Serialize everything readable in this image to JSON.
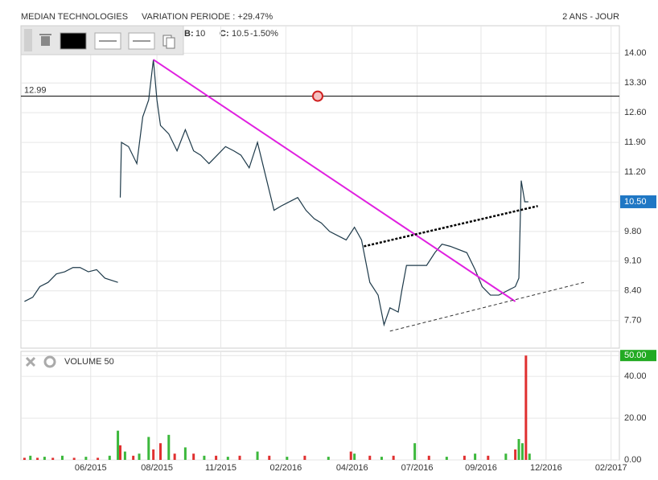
{
  "chart_data": [
    {
      "type": "line",
      "title": "MEDIAN TECHNOLOGIES",
      "subtitle": "VARIATION PERIODE : +29.47%",
      "period": "2 ANS - JOUR",
      "info": {
        "b_key": "B:",
        "b_value": 10,
        "c_key": "C:",
        "c_value": 10.5,
        "change": "-1.50%",
        "change_color": "#cc2222"
      },
      "xlim": [
        0,
        506
      ],
      "ylim": [
        7.05,
        14.65
      ],
      "yticks": [
        {
          "value": 7.7,
          "label": "7.70"
        },
        {
          "value": 8.4,
          "label": "8.40"
        },
        {
          "value": 9.1,
          "label": "9.10"
        },
        {
          "value": 9.8,
          "label": "9.80"
        },
        {
          "value": 10.5,
          "label": "10.50"
        },
        {
          "value": 11.2,
          "label": "11.20"
        },
        {
          "value": 11.9,
          "label": "11.90"
        },
        {
          "value": 12.6,
          "label": "12.60"
        },
        {
          "value": 13.3,
          "label": "13.30"
        },
        {
          "value": 14.0,
          "label": "14.00"
        }
      ],
      "grid": true,
      "series": [
        {
          "color": "#1e3a4a",
          "x": [
            3,
            10,
            16,
            23,
            30,
            37,
            44,
            50,
            57,
            64,
            71,
            82,
            83,
            84,
            85,
            91,
            98,
            103,
            108,
            112,
            115,
            118,
            125,
            132,
            139,
            146,
            152,
            159,
            166,
            173,
            180,
            186,
            193,
            200,
            207,
            214,
            220,
            227,
            234,
            241,
            248,
            254,
            261,
            268,
            275,
            282,
            288,
            295,
            302,
            307,
            312,
            319,
            322,
            326,
            333,
            343,
            350,
            356,
            363,
            377,
            384,
            390,
            397,
            404,
            411,
            418,
            421,
            423,
            426,
            429
          ],
          "values": [
            8.15,
            8.25,
            8.5,
            8.6,
            8.8,
            8.85,
            8.95,
            8.95,
            8.85,
            8.9,
            8.7,
            8.6,
            null,
            10.6,
            11.9,
            11.8,
            11.4,
            12.5,
            12.9,
            13.85,
            12.9,
            12.3,
            12.1,
            11.7,
            12.2,
            11.7,
            11.6,
            11.4,
            11.6,
            11.8,
            11.7,
            11.6,
            11.3,
            11.9,
            11.1,
            10.3,
            10.4,
            10.5,
            10.6,
            10.3,
            10.1,
            10.0,
            9.8,
            9.7,
            9.6,
            9.9,
            9.6,
            8.6,
            8.3,
            7.6,
            8.0,
            7.9,
            8.4,
            9.0,
            9.0,
            9.0,
            9.3,
            9.5,
            9.45,
            9.3,
            8.9,
            8.5,
            8.3,
            8.3,
            8.4,
            8.5,
            8.7,
            11.0,
            10.5,
            10.5
          ]
        }
      ],
      "last_price": {
        "value": 10.5,
        "label": "10.50",
        "color": "#1f77c4"
      },
      "hline": {
        "value": 12.99,
        "color": "#000000"
      },
      "trendlines": [
        {
          "x": [
            112,
            418
          ],
          "values": [
            13.85,
            8.15
          ],
          "color": "#e020e0",
          "style": "solid"
        },
        {
          "x": [
            290,
            437
          ],
          "values": [
            9.45,
            10.4
          ],
          "color": "#000000",
          "style": "dotted"
        },
        {
          "x": [
            312,
            476
          ],
          "values": [
            7.45,
            8.6
          ],
          "color": "#333333",
          "style": "dashed"
        }
      ]
    },
    {
      "type": "bar",
      "label": "VOLUME 50",
      "xlim": [
        0,
        506
      ],
      "xticks": [
        {
          "value": 59,
          "label": "06/2015"
        },
        {
          "value": 115,
          "label": "08/2015"
        },
        {
          "value": 169,
          "label": "11/2015"
        },
        {
          "value": 224,
          "label": "02/2016"
        },
        {
          "value": 280,
          "label": "04/2016"
        },
        {
          "value": 335,
          "label": "07/2016"
        },
        {
          "value": 389,
          "label": "09/2016"
        },
        {
          "value": 444,
          "label": "12/2016"
        },
        {
          "value": 499,
          "label": "02/2017"
        }
      ],
      "ylim": [
        0,
        52
      ],
      "yticks": [
        {
          "value": 0,
          "label": "0.00"
        },
        {
          "value": 20,
          "label": "20.00"
        },
        {
          "value": 40,
          "label": "40.00"
        },
        {
          "value": 50,
          "label": "50.00"
        }
      ],
      "highlight_color": "#22aa22",
      "x": [
        3,
        8,
        14,
        20,
        27,
        35,
        45,
        55,
        65,
        75,
        82,
        84,
        88,
        95,
        100,
        108,
        112,
        118,
        125,
        130,
        139,
        146,
        155,
        165,
        175,
        185,
        200,
        210,
        225,
        240,
        260,
        279,
        282,
        295,
        305,
        315,
        333,
        345,
        360,
        375,
        384,
        395,
        410,
        418,
        421,
        424,
        427,
        430
      ],
      "values": [
        1,
        2,
        1,
        1.5,
        1,
        2,
        1,
        1.5,
        1,
        2,
        14,
        7,
        4,
        2,
        3,
        11,
        5,
        8,
        12,
        3,
        6,
        3,
        2,
        2,
        1.5,
        2,
        4,
        2,
        1.5,
        2,
        1.5,
        4,
        3,
        2,
        1.5,
        2,
        8,
        2,
        1.5,
        2,
        3,
        2,
        3,
        5,
        10,
        8,
        50,
        3
      ],
      "colors": [
        "#e03030",
        "#3cb83c",
        "#e03030",
        "#3cb83c",
        "#e03030",
        "#3cb83c",
        "#e03030",
        "#3cb83c",
        "#e03030",
        "#3cb83c",
        "#3cb83c",
        "#e03030",
        "#3cb83c",
        "#e03030",
        "#3cb83c",
        "#3cb83c",
        "#e03030",
        "#e03030",
        "#3cb83c",
        "#e03030",
        "#3cb83c",
        "#e03030",
        "#3cb83c",
        "#e03030",
        "#3cb83c",
        "#e03030",
        "#3cb83c",
        "#e03030",
        "#3cb83c",
        "#e03030",
        "#3cb83c",
        "#e03030",
        "#3cb83c",
        "#e03030",
        "#3cb83c",
        "#e03030",
        "#3cb83c",
        "#e03030",
        "#3cb83c",
        "#e03030",
        "#3cb83c",
        "#e03030",
        "#3cb83c",
        "#e03030",
        "#3cb83c",
        "#3cb83c",
        "#e03030",
        "#3cb83c"
      ]
    }
  ]
}
